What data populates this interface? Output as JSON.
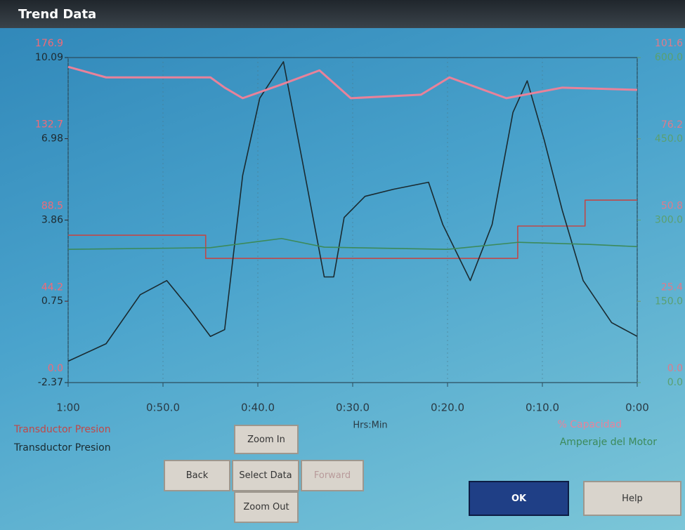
{
  "window": {
    "title": "Trend Data"
  },
  "chart_data": {
    "type": "line",
    "x_label": "Hrs:Min",
    "grid": true,
    "xlim": [
      60,
      0
    ],
    "xticks": [
      {
        "value": 60,
        "label": "1:00"
      },
      {
        "value": 50,
        "label": "0:50.0"
      },
      {
        "value": 40,
        "label": "0:40.0"
      },
      {
        "value": 30,
        "label": "0:30.0"
      },
      {
        "value": 20,
        "label": "0:20.0"
      },
      {
        "value": 10,
        "label": "0:10.0"
      },
      {
        "value": 0,
        "label": "0:00"
      }
    ],
    "axes": [
      {
        "side": "left",
        "color": "#f06a78",
        "ylim": [
          0,
          176.9
        ],
        "yticks": [
          {
            "value": 0,
            "label": "0.0"
          },
          44.2,
          88.5,
          132.7,
          176.9
        ]
      },
      {
        "side": "left",
        "color": "#1e2a30",
        "ylim": [
          -2.37,
          10.09
        ],
        "yticks": [
          -2.37,
          0.75,
          3.86,
          6.98,
          10.09
        ]
      },
      {
        "side": "right",
        "color": "#e07a8a",
        "ylim": [
          0,
          101.6
        ],
        "yticks": [
          {
            "value": 0,
            "label": "0.0"
          },
          25.4,
          50.8,
          76.2,
          101.6
        ]
      },
      {
        "side": "right",
        "color": "#5aa070",
        "ylim": [
          0,
          600
        ],
        "yticks": [
          {
            "value": 0,
            "label": "0.0"
          },
          {
            "value": 150,
            "label": "150.0"
          },
          {
            "value": 300,
            "label": "300.0"
          },
          {
            "value": 450,
            "label": "450.0"
          },
          {
            "value": 600,
            "label": "600.0"
          }
        ]
      }
    ],
    "series": [
      {
        "name": "Transductor Presion",
        "color": "#c04848",
        "axis": 0,
        "x": [
          60,
          45.5,
          45.5,
          12.6,
          12.6,
          5.5,
          5.5,
          0
        ],
        "values": [
          80.2,
          80.2,
          67.6,
          67.6,
          85.2,
          85.2,
          99.3,
          99.3
        ]
      },
      {
        "name": "Transductor Presion",
        "color": "#1a2a30",
        "axis": 1,
        "x": [
          60,
          56,
          52.4,
          49.6,
          47.2,
          45,
          43.5,
          41.6,
          39.8,
          37.3,
          35.3,
          33,
          32,
          30.9,
          28.7,
          25.7,
          22,
          20.5,
          17.6,
          15.3,
          13.1,
          11.6,
          9.8,
          7.9,
          5.7,
          2.7,
          0
        ],
        "values": [
          -1.55,
          -0.88,
          1.0,
          1.54,
          0.47,
          -0.6,
          -0.34,
          5.57,
          8.53,
          9.93,
          6.11,
          1.68,
          1.68,
          3.96,
          4.77,
          5.04,
          5.31,
          3.69,
          1.54,
          3.69,
          7.99,
          9.2,
          6.92,
          4.23,
          1.54,
          -0.07,
          -0.6
        ]
      },
      {
        "name": "% Capacidad",
        "color": "#e8829a",
        "axis": 2,
        "x": [
          60,
          56,
          45,
          43.5,
          41.6,
          37.5,
          33.5,
          30.2,
          22.8,
          19.8,
          13.8,
          7.9,
          0
        ],
        "values": [
          98.7,
          95.4,
          95.4,
          92.2,
          88.9,
          93.2,
          97.6,
          88.9,
          90.0,
          95.4,
          88.9,
          92.2,
          91.5
        ]
      },
      {
        "name": "Amperaje del Motor",
        "color": "#3c8a5a",
        "axis": 3,
        "x": [
          60,
          45,
          37.5,
          33,
          20,
          12.5,
          5,
          0
        ],
        "values": [
          246,
          249,
          266,
          250,
          246,
          259,
          255,
          251
        ]
      }
    ]
  },
  "buttons": [
    "Zoom In",
    "Back",
    "Select Data",
    "Forward",
    "Zoom Out",
    "OK",
    "Help"
  ]
}
